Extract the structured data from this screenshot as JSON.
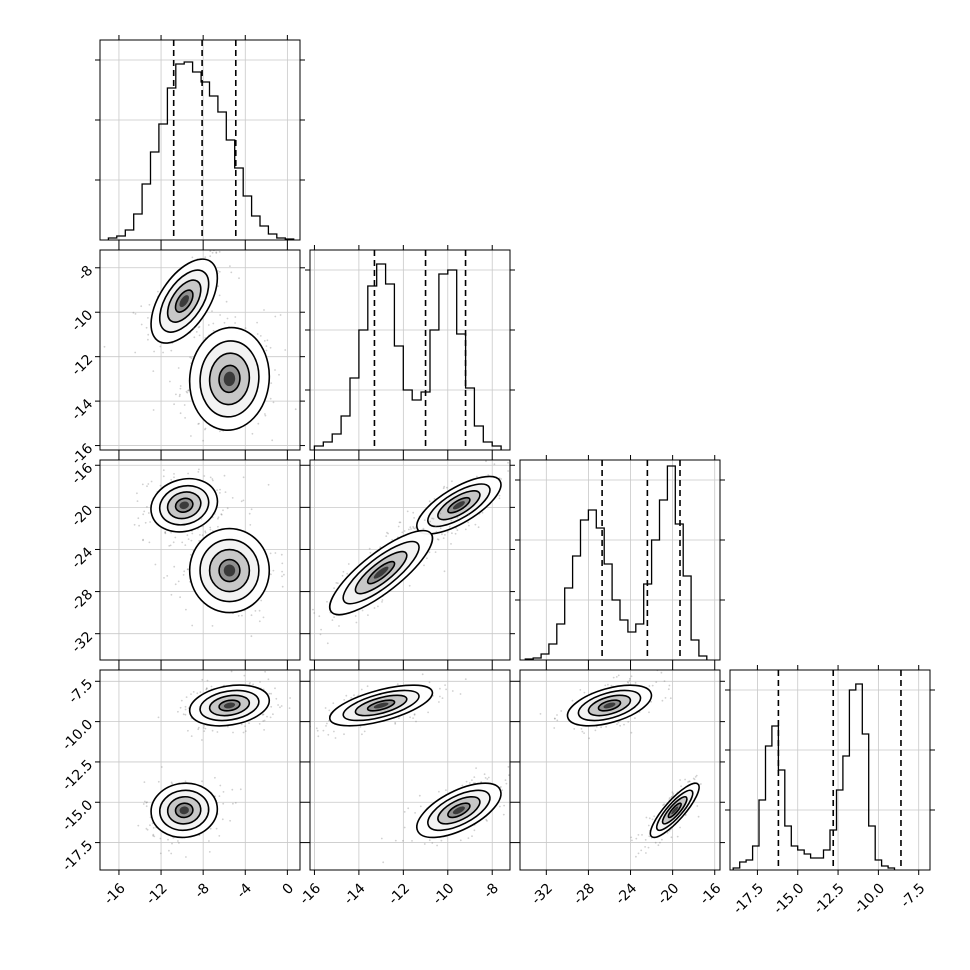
{
  "chart_data": {
    "type": "corner",
    "grid": true,
    "dims": [
      {
        "ticks": [
          "-16",
          "-12",
          "-8",
          "-4",
          "0"
        ]
      },
      {
        "ticks": [
          "-16",
          "-14",
          "-12",
          "-10",
          "-8"
        ]
      },
      {
        "ticks": [
          "-32",
          "-28",
          "-24",
          "-20",
          "-16"
        ]
      },
      {
        "ticks": [
          "-17.5",
          "-15.0",
          "-12.5",
          "-10.0",
          "-7.5"
        ]
      }
    ],
    "ylabels_left": [
      {
        "row": 1,
        "ticks": [
          "-8",
          "-10",
          "-12",
          "-14",
          "-16"
        ]
      },
      {
        "row": 2,
        "ticks": [
          "-16",
          "-20",
          "-24",
          "-28",
          "-32"
        ]
      },
      {
        "row": 3,
        "ticks": [
          "-7.5",
          "-10.0",
          "-12.5",
          "-15.0",
          "-17.5"
        ]
      }
    ],
    "histograms": [
      {
        "dim": 0,
        "quantile_lines": [
          -10.8,
          -8.1,
          -4.9
        ],
        "bin_start": -17.0,
        "bin_width": 0.8,
        "counts": [
          0.01,
          0.02,
          0.05,
          0.13,
          0.28,
          0.44,
          0.58,
          0.76,
          0.88,
          0.89,
          0.84,
          0.79,
          0.72,
          0.64,
          0.5,
          0.36,
          0.22,
          0.12,
          0.07,
          0.03,
          0.01,
          0.005
        ]
      },
      {
        "dim": 1,
        "quantile_lines": [
          -13.3,
          -11.0,
          -9.2
        ],
        "bin_start": -16.0,
        "bin_width": 0.4,
        "counts": [
          0.02,
          0.04,
          0.08,
          0.17,
          0.36,
          0.6,
          0.82,
          0.93,
          0.83,
          0.52,
          0.3,
          0.25,
          0.29,
          0.6,
          0.88,
          0.9,
          0.58,
          0.31,
          0.12,
          0.04,
          0.02
        ]
      },
      {
        "dim": 2,
        "quantile_lines": [
          -26.7,
          -22.4,
          -19.3
        ],
        "bin_start": -34.0,
        "bin_width": 0.75,
        "counts": [
          0.005,
          0.01,
          0.03,
          0.08,
          0.18,
          0.36,
          0.52,
          0.7,
          0.75,
          0.66,
          0.48,
          0.3,
          0.2,
          0.14,
          0.18,
          0.38,
          0.6,
          0.8,
          0.97,
          0.68,
          0.42,
          0.1,
          0.02
        ]
      },
      {
        "dim": 3,
        "quantile_lines": [
          -16.2,
          -12.8,
          -8.6
        ],
        "bin_start": -19.0,
        "bin_width": 0.4,
        "counts": [
          0.01,
          0.04,
          0.05,
          0.12,
          0.35,
          0.62,
          0.72,
          0.5,
          0.22,
          0.12,
          0.1,
          0.08,
          0.06,
          0.06,
          0.1,
          0.2,
          0.4,
          0.57,
          0.9,
          0.93,
          0.68,
          0.22,
          0.05,
          0.02,
          0.01
        ]
      }
    ],
    "scatter_panels": [
      {
        "row": 1,
        "col": 0,
        "modes": [
          {
            "cx": -9.8,
            "cy": -9.5,
            "sx": 1.5,
            "sy": 0.9,
            "rho": 0.55
          },
          {
            "cx": -5.5,
            "cy": -13.0,
            "sx": 1.8,
            "sy": 1.1,
            "rho": 0.05
          }
        ]
      },
      {
        "row": 2,
        "col": 0,
        "modes": [
          {
            "cx": -9.8,
            "cy": -19.8,
            "sx": 1.5,
            "sy": 1.2,
            "rho": 0.15
          },
          {
            "cx": -5.5,
            "cy": -26.0,
            "sx": 1.8,
            "sy": 1.9,
            "rho": 0.0
          }
        ]
      },
      {
        "row": 2,
        "col": 1,
        "modes": [
          {
            "cx": -9.5,
            "cy": -19.8,
            "sx": 0.9,
            "sy": 1.3,
            "rho": 0.72
          },
          {
            "cx": -13.0,
            "cy": -26.2,
            "sx": 1.1,
            "sy": 1.9,
            "rho": 0.82
          }
        ]
      },
      {
        "row": 3,
        "col": 0,
        "modes": [
          {
            "cx": -5.5,
            "cy": -9.0,
            "sx": 1.8,
            "sy": 0.6,
            "rho": 0.25
          },
          {
            "cx": -9.8,
            "cy": -15.5,
            "sx": 1.5,
            "sy": 0.8,
            "rho": 0.05
          }
        ]
      },
      {
        "row": 3,
        "col": 1,
        "modes": [
          {
            "cx": -13.0,
            "cy": -9.0,
            "sx": 1.1,
            "sy": 0.6,
            "rho": 0.62
          },
          {
            "cx": -9.5,
            "cy": -15.5,
            "sx": 0.9,
            "sy": 0.8,
            "rho": 0.62
          }
        ]
      },
      {
        "row": 3,
        "col": 2,
        "modes": [
          {
            "cx": -26.0,
            "cy": -9.0,
            "sx": 1.9,
            "sy": 0.6,
            "rho": 0.5
          },
          {
            "cx": -19.8,
            "cy": -15.5,
            "sx": 1.1,
            "sy": 0.8,
            "rho": 0.85
          }
        ]
      }
    ]
  }
}
